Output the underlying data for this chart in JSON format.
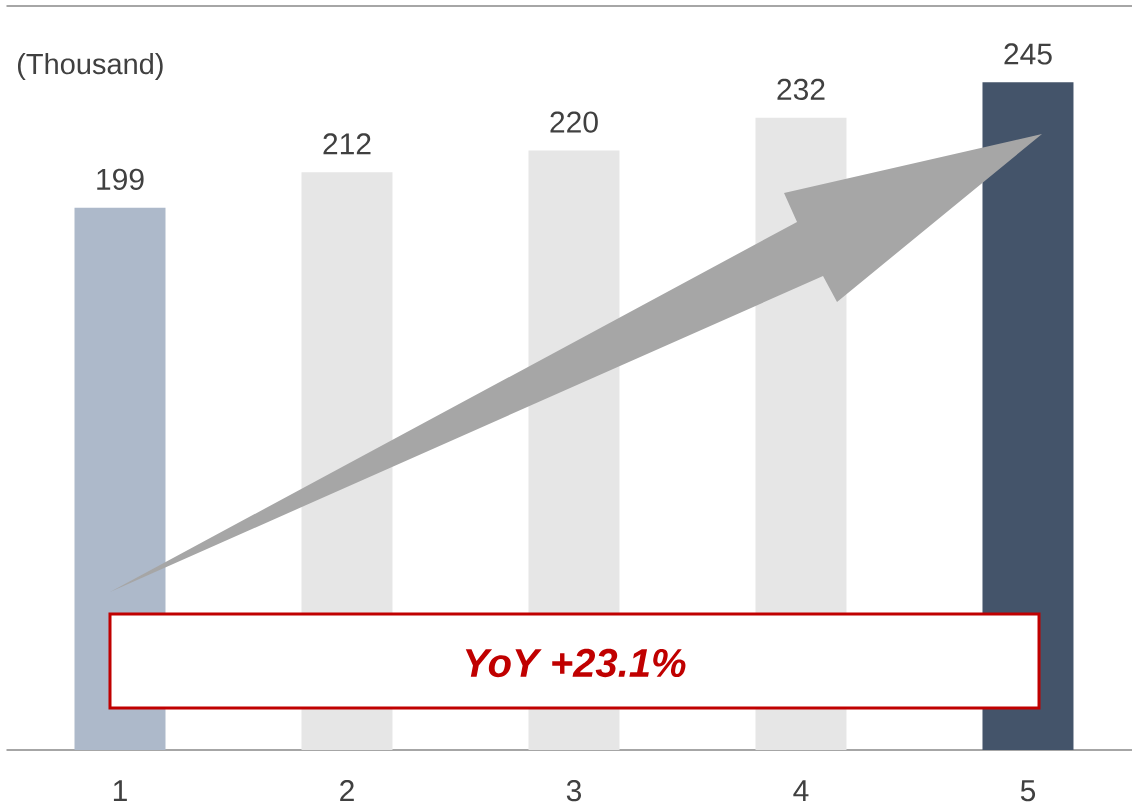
{
  "chart_data": {
    "type": "bar",
    "ylabel": "(Thousand)",
    "categories": [
      "1",
      "2",
      "3",
      "4",
      "5"
    ],
    "values": [
      199,
      212,
      220,
      232,
      245
    ],
    "colors": [
      "#adb9ca",
      "#e6e6e6",
      "#e6e6e6",
      "#e6e6e6",
      "#44546a"
    ],
    "ylim": [
      0,
      273
    ],
    "tick_labels": "x",
    "data_labels": true,
    "annotations": [
      "YoY +23.1%"
    ]
  }
}
